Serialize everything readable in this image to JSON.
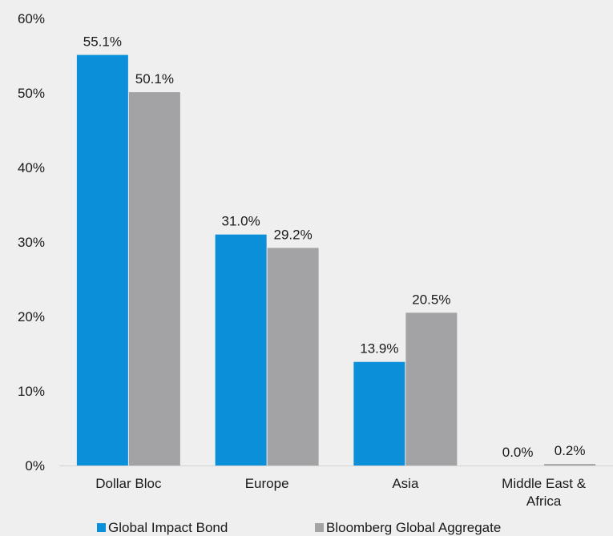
{
  "chart_data": {
    "type": "bar",
    "categories": [
      "Dollar Bloc",
      "Europe",
      "Asia",
      "Middle East & Africa"
    ],
    "category_lines": [
      [
        "Dollar Bloc"
      ],
      [
        "Europe"
      ],
      [
        "Asia"
      ],
      [
        "Middle East &",
        "Africa"
      ]
    ],
    "series": [
      {
        "name": "Global Impact Bond",
        "color": "#0a8fd8",
        "values": [
          55.1,
          31.0,
          13.9,
          0.0
        ],
        "labels": [
          "55.1%",
          "31.0%",
          "13.9%",
          "0.0%"
        ]
      },
      {
        "name": "Bloomberg Global Aggregate",
        "color": "#a3a3a5",
        "values": [
          50.1,
          29.2,
          20.5,
          0.2
        ],
        "labels": [
          "50.1%",
          "29.2%",
          "20.5%",
          "0.2%"
        ]
      }
    ],
    "ylim": [
      0,
      60
    ],
    "yticks": [
      0,
      10,
      20,
      30,
      40,
      50,
      60
    ],
    "ytick_labels": [
      "0%",
      "10%",
      "20%",
      "30%",
      "40%",
      "50%",
      "60%"
    ],
    "grid": false,
    "legend_position": "bottom",
    "title": "",
    "xlabel": "",
    "ylabel": ""
  }
}
